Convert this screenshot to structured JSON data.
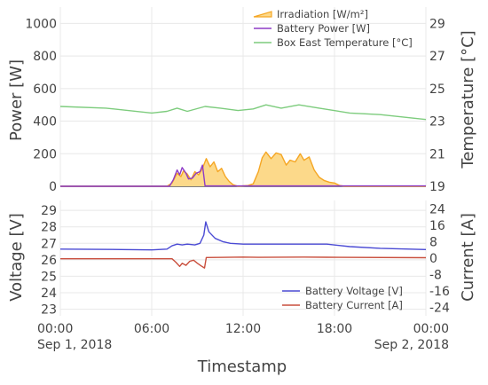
{
  "chart_data": [
    {
      "type": "area",
      "xlim": [
        "2018-09-01T00:00",
        "2018-09-02T00:00"
      ],
      "x_tick_labels": [
        "00:00",
        "06:00",
        "12:00",
        "18:00",
        "00:00"
      ],
      "x_tick_sublabels": [
        "Sep 1, 2018",
        "",
        "",
        "",
        "Sep 2, 2018"
      ],
      "ylabel": "Power [W]",
      "ylim": [
        0,
        1100
      ],
      "y_ticks": [
        0,
        200,
        400,
        600,
        800,
        1000
      ],
      "y2label": "Temperature [°C]",
      "y2lim": [
        19,
        30
      ],
      "y2_ticks": [
        19,
        21,
        23,
        25,
        27,
        29
      ],
      "legend_position": "top-right",
      "grid": true,
      "series": [
        {
          "name": "Irradiation [W/m²]",
          "axis": "y",
          "style": "area",
          "line_color": "#f5a623",
          "fill_color": "#fcd98a",
          "points": [
            [
              "2018-09-01T00:00",
              0
            ],
            [
              "2018-09-01T07:00",
              0
            ],
            [
              "2018-09-01T07:20",
              20
            ],
            [
              "2018-09-01T07:40",
              80
            ],
            [
              "2018-09-01T07:55",
              60
            ],
            [
              "2018-09-01T08:05",
              95
            ],
            [
              "2018-09-01T08:20",
              75
            ],
            [
              "2018-09-01T08:35",
              40
            ],
            [
              "2018-09-01T08:50",
              90
            ],
            [
              "2018-09-01T09:05",
              70
            ],
            [
              "2018-09-01T09:20",
              110
            ],
            [
              "2018-09-01T09:35",
              170
            ],
            [
              "2018-09-01T09:50",
              120
            ],
            [
              "2018-09-01T10:05",
              150
            ],
            [
              "2018-09-01T10:20",
              90
            ],
            [
              "2018-09-01T10:35",
              110
            ],
            [
              "2018-09-01T10:50",
              60
            ],
            [
              "2018-09-01T11:05",
              30
            ],
            [
              "2018-09-01T11:20",
              10
            ],
            [
              "2018-09-01T11:40",
              0
            ],
            [
              "2018-09-01T12:20",
              5
            ],
            [
              "2018-09-01T12:40",
              15
            ],
            [
              "2018-09-01T13:00",
              90
            ],
            [
              "2018-09-01T13:15",
              175
            ],
            [
              "2018-09-01T13:30",
              210
            ],
            [
              "2018-09-01T13:50",
              170
            ],
            [
              "2018-09-01T14:10",
              205
            ],
            [
              "2018-09-01T14:30",
              195
            ],
            [
              "2018-09-01T14:50",
              130
            ],
            [
              "2018-09-01T15:05",
              160
            ],
            [
              "2018-09-01T15:25",
              150
            ],
            [
              "2018-09-01T15:45",
              200
            ],
            [
              "2018-09-01T16:00",
              160
            ],
            [
              "2018-09-01T16:20",
              180
            ],
            [
              "2018-09-01T16:40",
              100
            ],
            [
              "2018-09-01T17:00",
              55
            ],
            [
              "2018-09-01T17:20",
              35
            ],
            [
              "2018-09-01T17:40",
              25
            ],
            [
              "2018-09-01T18:00",
              20
            ],
            [
              "2018-09-01T18:20",
              5
            ],
            [
              "2018-09-01T18:40",
              0
            ],
            [
              "2018-09-02T00:00",
              0
            ]
          ]
        },
        {
          "name": "Battery Power [W]",
          "axis": "y",
          "style": "line",
          "line_color": "#8e3bc6",
          "points": [
            [
              "2018-09-01T00:00",
              0
            ],
            [
              "2018-09-01T07:10",
              0
            ],
            [
              "2018-09-01T07:25",
              40
            ],
            [
              "2018-09-01T07:40",
              100
            ],
            [
              "2018-09-01T07:50",
              70
            ],
            [
              "2018-09-01T08:00",
              115
            ],
            [
              "2018-09-01T08:15",
              80
            ],
            [
              "2018-09-01T08:25",
              45
            ],
            [
              "2018-09-01T08:40",
              50
            ],
            [
              "2018-09-01T08:55",
              80
            ],
            [
              "2018-09-01T09:10",
              90
            ],
            [
              "2018-09-01T09:20",
              130
            ],
            [
              "2018-09-01T09:30",
              2
            ],
            [
              "2018-09-02T00:00",
              2
            ]
          ]
        },
        {
          "name": "Box East Temperature [°C]",
          "axis": "y2",
          "style": "line",
          "line_color": "#7dcc7d",
          "points": [
            [
              "2018-09-01T00:00",
              23.9
            ],
            [
              "2018-09-01T03:00",
              23.8
            ],
            [
              "2018-09-01T06:00",
              23.5
            ],
            [
              "2018-09-01T07:00",
              23.6
            ],
            [
              "2018-09-01T07:40",
              23.8
            ],
            [
              "2018-09-01T08:20",
              23.6
            ],
            [
              "2018-09-01T09:30",
              23.9
            ],
            [
              "2018-09-01T10:30",
              23.8
            ],
            [
              "2018-09-01T11:40",
              23.65
            ],
            [
              "2018-09-01T12:40",
              23.75
            ],
            [
              "2018-09-01T13:30",
              24.0
            ],
            [
              "2018-09-01T14:30",
              23.8
            ],
            [
              "2018-09-01T15:40",
              24.0
            ],
            [
              "2018-09-01T17:00",
              23.8
            ],
            [
              "2018-09-01T19:00",
              23.5
            ],
            [
              "2018-09-01T21:00",
              23.4
            ],
            [
              "2018-09-02T00:00",
              23.1
            ]
          ]
        }
      ]
    },
    {
      "type": "line",
      "xlim": [
        "2018-09-01T00:00",
        "2018-09-02T00:00"
      ],
      "xlabel": "Timestamp",
      "ylabel": "Voltage [V]",
      "ylim": [
        22.6,
        29.6
      ],
      "y_ticks": [
        23,
        24,
        25,
        26,
        27,
        28,
        29
      ],
      "y2label": "Current [A]",
      "y2lim": [
        -28,
        28
      ],
      "y2_ticks": [
        -24,
        -16,
        -8,
        0,
        8,
        16,
        24
      ],
      "legend_position": "bottom-right",
      "grid": true,
      "series": [
        {
          "name": "Battery Voltage [V]",
          "axis": "y",
          "style": "line",
          "line_color": "#4a4ad4",
          "points": [
            [
              "2018-09-01T00:00",
              26.65
            ],
            [
              "2018-09-01T04:00",
              26.62
            ],
            [
              "2018-09-01T06:00",
              26.6
            ],
            [
              "2018-09-01T07:00",
              26.65
            ],
            [
              "2018-09-01T07:20",
              26.85
            ],
            [
              "2018-09-01T07:40",
              26.95
            ],
            [
              "2018-09-01T08:00",
              26.9
            ],
            [
              "2018-09-01T08:20",
              26.95
            ],
            [
              "2018-09-01T08:50",
              26.9
            ],
            [
              "2018-09-01T09:10",
              27.0
            ],
            [
              "2018-09-01T09:25",
              27.5
            ],
            [
              "2018-09-01T09:33",
              28.3
            ],
            [
              "2018-09-01T09:45",
              27.7
            ],
            [
              "2018-09-01T10:10",
              27.3
            ],
            [
              "2018-09-01T10:40",
              27.1
            ],
            [
              "2018-09-01T11:10",
              27.0
            ],
            [
              "2018-09-01T12:00",
              26.95
            ],
            [
              "2018-09-01T17:30",
              26.95
            ],
            [
              "2018-09-01T19:00",
              26.8
            ],
            [
              "2018-09-01T21:00",
              26.7
            ],
            [
              "2018-09-02T00:00",
              26.62
            ]
          ]
        },
        {
          "name": "Battery Current [A]",
          "axis": "y2",
          "style": "line",
          "line_color": "#c94f3d",
          "points": [
            [
              "2018-09-01T00:00",
              -0.3
            ],
            [
              "2018-09-01T07:20",
              -0.3
            ],
            [
              "2018-09-01T07:35",
              -2
            ],
            [
              "2018-09-01T07:50",
              -4
            ],
            [
              "2018-09-01T08:00",
              -2.5
            ],
            [
              "2018-09-01T08:15",
              -3.5
            ],
            [
              "2018-09-01T08:30",
              -1.5
            ],
            [
              "2018-09-01T08:45",
              -1.0
            ],
            [
              "2018-09-01T09:00",
              -2.5
            ],
            [
              "2018-09-01T09:15",
              -3.8
            ],
            [
              "2018-09-01T09:28",
              -4.8
            ],
            [
              "2018-09-01T09:35",
              0.3
            ],
            [
              "2018-09-01T12:00",
              0.5
            ],
            [
              "2018-09-01T13:00",
              0.4
            ],
            [
              "2018-09-01T16:00",
              0.5
            ],
            [
              "2018-09-01T17:30",
              0.45
            ],
            [
              "2018-09-02T00:00",
              0.2
            ]
          ]
        }
      ]
    }
  ]
}
